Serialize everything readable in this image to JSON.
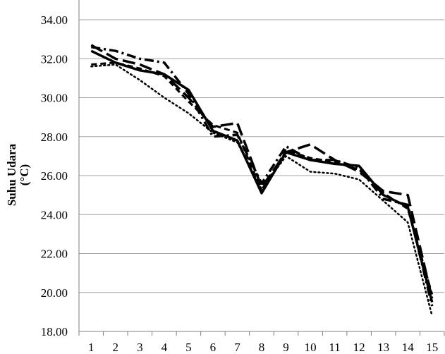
{
  "chart_data": {
    "type": "line",
    "title": "",
    "xlabel": "",
    "ylabel_line1": "Suhu Udara",
    "ylabel_line2": "(°C)",
    "x": [
      1,
      2,
      3,
      4,
      5,
      6,
      7,
      8,
      9,
      10,
      11,
      12,
      13,
      14,
      15
    ],
    "x_tick_labels": [
      "1",
      "2",
      "3",
      "4",
      "5",
      "6",
      "7",
      "8",
      "9",
      "10",
      "11",
      "12",
      "13",
      "14",
      "15"
    ],
    "ylim": [
      18,
      34
    ],
    "y_ticks": [
      18,
      20,
      22,
      24,
      26,
      28,
      30,
      32,
      34
    ],
    "y_tick_labels": [
      "18.00",
      "20.00",
      "22.00",
      "24.00",
      "26.00",
      "28.00",
      "30.00",
      "32.00",
      "34.00"
    ],
    "grid": "horizontal",
    "legend": "none",
    "series": [
      {
        "style": "solid",
        "values": [
          32.4,
          31.8,
          31.4,
          31.2,
          30.4,
          28.3,
          27.8,
          25.1,
          27.2,
          26.8,
          26.6,
          26.5,
          25.0,
          24.4,
          19.5
        ]
      },
      {
        "style": "long-dash",
        "values": [
          32.7,
          32.0,
          31.7,
          31.2,
          30.0,
          28.5,
          28.7,
          25.4,
          27.2,
          27.6,
          26.8,
          26.2,
          25.2,
          25.0,
          19.7
        ]
      },
      {
        "style": "dash-dot",
        "values": [
          32.6,
          32.4,
          32.0,
          31.8,
          30.2,
          28.0,
          28.1,
          25.6,
          27.5,
          26.8,
          26.8,
          26.4,
          24.8,
          24.5,
          19.3
        ]
      },
      {
        "style": "dot",
        "values": [
          31.6,
          31.7,
          30.9,
          30.0,
          29.2,
          28.2,
          27.7,
          25.3,
          27.0,
          26.2,
          26.1,
          25.8,
          24.7,
          23.6,
          18.8
        ]
      },
      {
        "style": "short-dash",
        "values": [
          31.7,
          31.8,
          31.5,
          31.1,
          29.8,
          28.6,
          28.2,
          25.2,
          27.3,
          26.9,
          26.7,
          26.3,
          25.1,
          24.3,
          19.9
        ]
      }
    ]
  }
}
